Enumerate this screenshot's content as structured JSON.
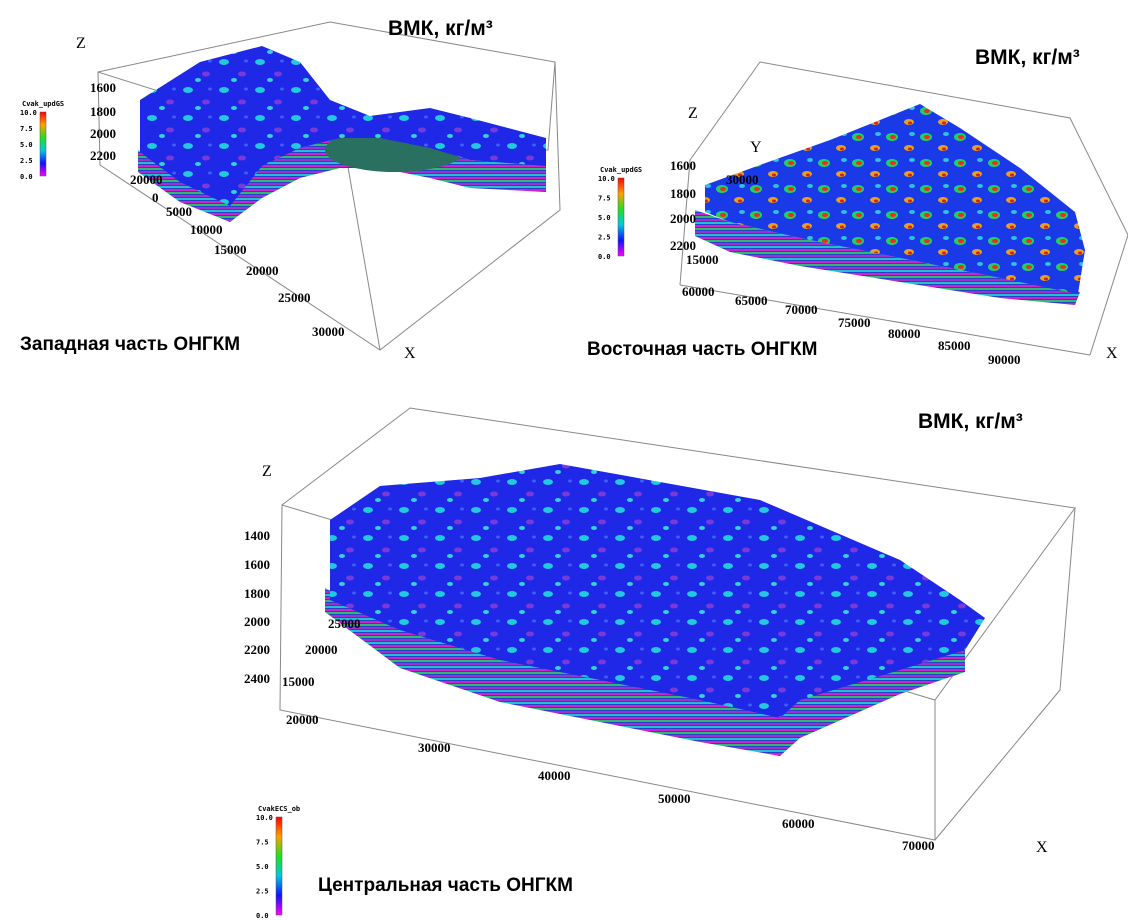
{
  "panels": [
    {
      "title": "ВМК, кг/м³",
      "caption": "Западная часть ОНГКМ",
      "axis_labels": {
        "z": "Z",
        "x": "X"
      },
      "z_ticks": [
        "1600",
        "1800",
        "2000",
        "2200"
      ],
      "y_ticks": [
        "20000",
        "0"
      ],
      "x_ticks": [
        "5000",
        "10000",
        "15000",
        "20000",
        "25000",
        "30000"
      ],
      "colorbar": {
        "label": "Cvak_updGS",
        "ticks": [
          "10.0",
          "7.5",
          "5.0",
          "2.5",
          "0.0"
        ]
      }
    },
    {
      "title": "ВМК, кг/м³",
      "caption": "Восточная часть ОНГКМ",
      "axis_labels": {
        "z": "Z",
        "y": "Y",
        "x": "X"
      },
      "z_ticks": [
        "1600",
        "1800",
        "2000",
        "2200"
      ],
      "y_ticks": [
        "30000",
        "15000"
      ],
      "x_ticks": [
        "60000",
        "65000",
        "70000",
        "75000",
        "80000",
        "85000",
        "90000"
      ],
      "colorbar": {
        "label": "Cvak_updGS",
        "ticks": [
          "10.0",
          "7.5",
          "5.0",
          "2.5",
          "0.0"
        ]
      }
    },
    {
      "title": "ВМК, кг/м³",
      "caption": "Центральная часть ОНГКМ",
      "axis_labels": {
        "z": "Z",
        "x": "X"
      },
      "z_ticks": [
        "1400",
        "1600",
        "1800",
        "2000",
        "2200",
        "2400"
      ],
      "y_ticks": [
        "25000",
        "20000",
        "15000"
      ],
      "x_ticks": [
        "20000",
        "30000",
        "40000",
        "50000",
        "60000",
        "70000"
      ],
      "colorbar": {
        "label": "CvakECS_ob",
        "ticks": [
          "10.0",
          "7.5",
          "5.0",
          "2.5",
          "0.0"
        ]
      }
    }
  ]
}
